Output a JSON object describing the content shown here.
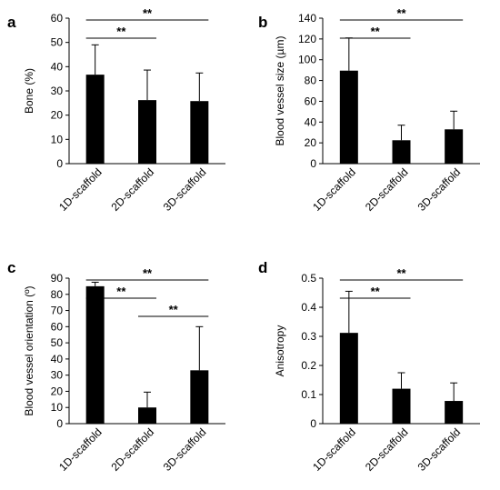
{
  "chart_data": [
    {
      "panel": "a",
      "type": "bar",
      "categories": [
        "1D-scaffold",
        "2D-scaffold",
        "3D-scaffold"
      ],
      "values": [
        36.7,
        26.2,
        25.8
      ],
      "errors": [
        12.3,
        12.4,
        11.6
      ],
      "ylabel": "Bone (%)",
      "ylim": [
        0,
        60
      ],
      "yticks": [
        0,
        10,
        20,
        30,
        40,
        50,
        60
      ],
      "significance": [
        {
          "from": 0,
          "to": 2,
          "label": "**"
        },
        {
          "from": 0,
          "to": 1,
          "label": "**"
        }
      ]
    },
    {
      "panel": "b",
      "type": "bar",
      "categories": [
        "1D-scaffold",
        "2D-scaffold",
        "3D-scaffold"
      ],
      "values": [
        89.5,
        22.5,
        33.0
      ],
      "errors": [
        31.5,
        14.5,
        17.5
      ],
      "ylabel": "Blood vessel size (µm)",
      "ylim": [
        0,
        140
      ],
      "yticks": [
        0,
        20,
        40,
        60,
        80,
        100,
        120,
        140
      ],
      "significance": [
        {
          "from": 0,
          "to": 2,
          "label": "**"
        },
        {
          "from": 0,
          "to": 1,
          "label": "**"
        }
      ]
    },
    {
      "panel": "c",
      "type": "bar",
      "categories": [
        "1D-scaffold",
        "2D-scaffold",
        "3D-scaffold"
      ],
      "values": [
        85.0,
        10.0,
        33.0
      ],
      "errors": [
        2.5,
        9.5,
        27.0
      ],
      "ylabel": "Blood vessel orientation (º)",
      "ylim": [
        0,
        90
      ],
      "yticks": [
        0,
        10,
        20,
        30,
        40,
        50,
        60,
        70,
        80,
        90
      ],
      "significance": [
        {
          "from": 0,
          "to": 2,
          "label": "**"
        },
        {
          "from": 0,
          "to": 1,
          "label": "**"
        },
        {
          "from": 1,
          "to": 2,
          "label": "**"
        }
      ]
    },
    {
      "panel": "d",
      "type": "bar",
      "categories": [
        "1D-scaffold",
        "2D-scaffold",
        "3D-scaffold"
      ],
      "values": [
        0.312,
        0.12,
        0.078
      ],
      "errors": [
        0.143,
        0.055,
        0.062
      ],
      "ylabel": "Anisotropy",
      "ylim": [
        0,
        0.5
      ],
      "yticks": [
        0,
        0.1,
        0.2,
        0.3,
        0.4,
        0.5
      ],
      "significance": [
        {
          "from": 0,
          "to": 2,
          "label": "**"
        },
        {
          "from": 0,
          "to": 1,
          "label": "**"
        }
      ]
    }
  ]
}
